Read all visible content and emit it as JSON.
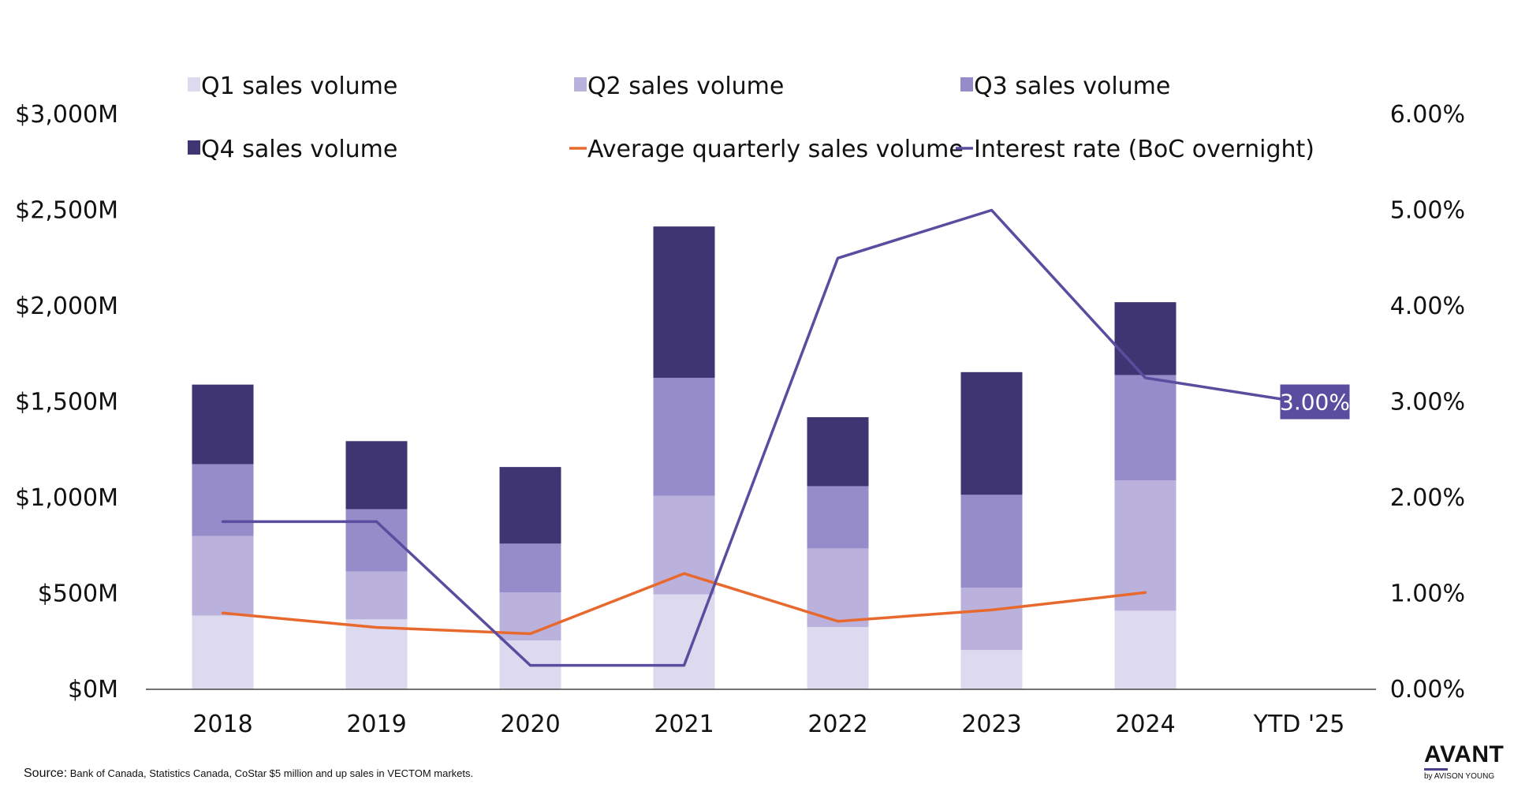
{
  "chart_data": {
    "type": "bar",
    "stacked": true,
    "categories": [
      "2018",
      "2019",
      "2020",
      "2021",
      "2022",
      "2023",
      "2024",
      "YTD '25"
    ],
    "series": [
      {
        "name": "Q1 sales volume",
        "kind": "bar",
        "color": "#dddaef",
        "values": [
          385,
          365,
          255,
          495,
          325,
          205,
          410,
          null
        ]
      },
      {
        "name": "Q2 sales volume",
        "kind": "bar",
        "color": "#bab2dd",
        "values": [
          415,
          250,
          250,
          515,
          410,
          325,
          680,
          null
        ]
      },
      {
        "name": "Q3 sales volume",
        "kind": "bar",
        "color": "#968cca",
        "values": [
          375,
          325,
          255,
          615,
          325,
          485,
          550,
          null
        ]
      },
      {
        "name": "Q4 sales volume",
        "kind": "bar",
        "color": "#3f3572",
        "values": [
          415,
          355,
          400,
          790,
          360,
          640,
          380,
          null
        ]
      },
      {
        "name": "Average quarterly sales volume",
        "kind": "line",
        "axis": "left",
        "color": "#e8692e",
        "values": [
          398,
          323,
          290,
          604,
          355,
          414,
          505,
          null
        ]
      },
      {
        "name": "Interest rate (BoC overnight)",
        "kind": "line",
        "axis": "right",
        "color": "#5a4d9f",
        "values": [
          1.75,
          1.75,
          0.25,
          0.25,
          4.5,
          5.0,
          3.25,
          3.0
        ]
      }
    ],
    "y_left": {
      "min": 0,
      "max": 3000,
      "ticks": [
        0,
        500,
        1000,
        1500,
        2000,
        2500,
        3000
      ],
      "tick_labels": [
        "$0M",
        "$500M",
        "$1,000M",
        "$1,500M",
        "$2,000M",
        "$2,500M",
        "$3,000M"
      ]
    },
    "y_right": {
      "min": 0,
      "max": 6,
      "ticks": [
        0,
        1,
        2,
        3,
        4,
        5,
        6
      ],
      "tick_labels": [
        "0.00%",
        "1.00%",
        "2.00%",
        "3.00%",
        "4.00%",
        "5.00%",
        "6.00%"
      ]
    },
    "annotation": {
      "text": "3.00%",
      "category": "YTD '25",
      "color": "#5a4d9f"
    },
    "grid": false,
    "legend": "top",
    "title": "",
    "xlabel": "",
    "ylabel": ""
  },
  "footer": {
    "source_label": "Source:",
    "source_text": "Bank of Canada, Statistics Canada, CoStar $5 million and up sales in VECTOM markets."
  },
  "logo": {
    "brand": "AVANT",
    "sub": "by AVISON YOUNG"
  }
}
